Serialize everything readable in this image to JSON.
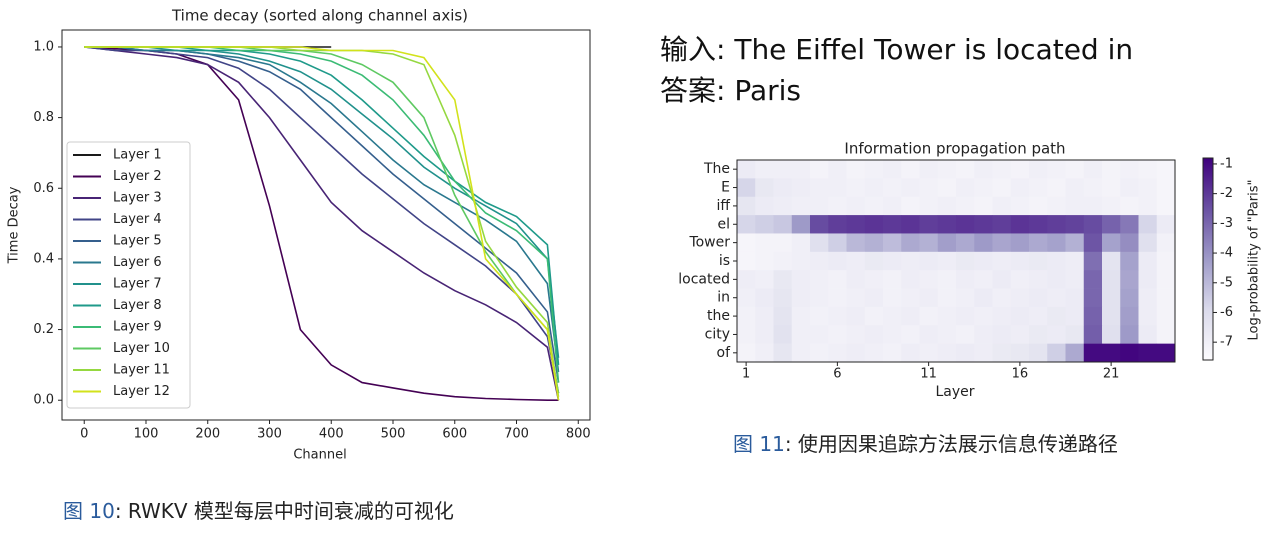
{
  "input_line": "输入: The Eiffel Tower is located in",
  "answer_line": "答案: Paris",
  "figure_10_caption": {
    "label": "图 10",
    "text": ": RWKV 模型每层中时间衰减的可视化"
  },
  "figure_11_caption": {
    "label": "图 11",
    "text": ": 使用因果追踪方法展示信息传递路径"
  },
  "chart_data": [
    {
      "type": "line",
      "title": "Time decay (sorted along channel axis)",
      "xlabel": "Channel",
      "ylabel": "Time Decay",
      "x": [
        0,
        50,
        100,
        150,
        200,
        250,
        300,
        350,
        400,
        450,
        500,
        550,
        600,
        650,
        700,
        750,
        768
      ],
      "xlim": [
        -36,
        819
      ],
      "xticks": [
        0,
        100,
        200,
        300,
        400,
        500,
        600,
        700,
        800
      ],
      "ylim": [
        -0.056,
        1.048
      ],
      "yticks": [
        {
          "value": 0,
          "label": "0.0"
        },
        0.2,
        0.4,
        0.6,
        0.8,
        {
          "value": 1,
          "label": "1.0"
        }
      ],
      "legend": "lower left",
      "series": [
        {
          "name": "Layer 1",
          "color": "#1a1a1a",
          "values": [
            1,
            1,
            1,
            1,
            1,
            1,
            1,
            1,
            1,
            null,
            null,
            null,
            null,
            null,
            null,
            null,
            null
          ]
        },
        {
          "name": "Layer 2",
          "color": "#440154",
          "values": [
            1,
            0.995,
            0.99,
            0.98,
            0.95,
            0.85,
            0.55,
            0.2,
            0.1,
            0.05,
            0.035,
            0.02,
            0.01,
            0.005,
            0.002,
            0,
            0
          ]
        },
        {
          "name": "Layer 3",
          "color": "#482475",
          "values": [
            1,
            0.99,
            0.98,
            0.97,
            0.95,
            0.9,
            0.8,
            0.68,
            0.56,
            0.48,
            0.42,
            0.36,
            0.31,
            0.27,
            0.22,
            0.15,
            0
          ]
        },
        {
          "name": "Layer 4",
          "color": "#414487",
          "values": [
            1,
            0.99,
            0.99,
            0.98,
            0.97,
            0.94,
            0.88,
            0.8,
            0.72,
            0.64,
            0.57,
            0.5,
            0.44,
            0.38,
            0.3,
            0.18,
            0.02
          ]
        },
        {
          "name": "Layer 5",
          "color": "#355f8d",
          "values": [
            1,
            1,
            0.99,
            0.99,
            0.98,
            0.96,
            0.93,
            0.88,
            0.8,
            0.72,
            0.64,
            0.57,
            0.5,
            0.43,
            0.36,
            0.25,
            0.05
          ]
        },
        {
          "name": "Layer 6",
          "color": "#2a788e",
          "values": [
            1,
            1,
            0.99,
            0.99,
            0.98,
            0.97,
            0.95,
            0.9,
            0.84,
            0.76,
            0.68,
            0.61,
            0.56,
            0.51,
            0.45,
            0.33,
            0.08
          ]
        },
        {
          "name": "Layer 7",
          "color": "#21918c",
          "values": [
            1,
            1,
            1,
            0.99,
            0.99,
            0.98,
            0.96,
            0.93,
            0.88,
            0.81,
            0.74,
            0.66,
            0.6,
            0.55,
            0.5,
            0.4,
            0.12
          ]
        },
        {
          "name": "Layer 8",
          "color": "#1f9a8a",
          "values": [
            1,
            1,
            1,
            1,
            0.99,
            0.99,
            0.98,
            0.96,
            0.92,
            0.85,
            0.77,
            0.69,
            0.62,
            0.56,
            0.52,
            0.44,
            0.1
          ]
        },
        {
          "name": "Layer 9",
          "color": "#3bbb75",
          "values": [
            1,
            1,
            1,
            1,
            1,
            0.99,
            0.99,
            0.98,
            0.96,
            0.92,
            0.85,
            0.75,
            0.62,
            0.53,
            0.48,
            0.4,
            0.05
          ]
        },
        {
          "name": "Layer 10",
          "color": "#5ec962",
          "values": [
            1,
            1,
            1,
            1,
            1,
            1,
            0.99,
            0.99,
            0.98,
            0.95,
            0.9,
            0.8,
            0.58,
            0.42,
            0.3,
            0.2,
            0.02
          ]
        },
        {
          "name": "Layer 11",
          "color": "#95d840",
          "values": [
            1,
            1,
            1,
            1,
            1,
            1,
            1,
            0.99,
            0.99,
            0.99,
            0.98,
            0.95,
            0.75,
            0.45,
            0.32,
            0.22,
            0.01
          ]
        },
        {
          "name": "Layer 12",
          "color": "#d2e21b",
          "values": [
            1,
            1,
            1,
            1,
            1,
            1,
            1,
            1,
            0.99,
            0.99,
            0.99,
            0.97,
            0.85,
            0.4,
            0.3,
            0.2,
            0
          ]
        }
      ]
    },
    {
      "type": "heatmap",
      "title": "Information propagation path",
      "xlabel": "Layer",
      "colorbar_label": "Log-probability of \"Paris\"",
      "y_categories": [
        "The",
        "E",
        "iff",
        "el",
        "Tower",
        "is",
        "located",
        "in",
        "the",
        "city",
        "of"
      ],
      "x": [
        1,
        2,
        3,
        4,
        5,
        6,
        7,
        8,
        9,
        10,
        11,
        12,
        13,
        14,
        15,
        16,
        17,
        18,
        19,
        20,
        21,
        22,
        23,
        24
      ],
      "xlim": [
        0.5,
        24.5
      ],
      "xticks": [
        1,
        6,
        11,
        16,
        21
      ],
      "clim": [
        -7.6,
        -0.8
      ],
      "cticks": [
        -1,
        -2,
        -3,
        -4,
        -5,
        -6,
        -7
      ],
      "colormap": [
        "#fcfbfd",
        "#dadaeb",
        "#9e9ac8",
        "#6a51a3",
        "#3f007d"
      ],
      "values": [
        [
          -6.8,
          -7,
          -7,
          -7,
          -7.2,
          -7,
          -7.2,
          -7.1,
          -7,
          -7.2,
          -7,
          -7.1,
          -7.2,
          -7,
          -7.1,
          -7.2,
          -7,
          -7.1,
          -7.2,
          -7,
          -7.2,
          -7.1,
          -7.2,
          -7.3
        ],
        [
          -5.8,
          -6.6,
          -6.8,
          -6.9,
          -7,
          -7,
          -7.1,
          -7,
          -7.1,
          -7,
          -7.1,
          -7.2,
          -7,
          -7.1,
          -7.2,
          -7,
          -7.1,
          -7.2,
          -7,
          -7.1,
          -7.2,
          -7,
          -7.1,
          -7.3
        ],
        [
          -6.5,
          -6.8,
          -6.9,
          -7,
          -7,
          -7.1,
          -7,
          -7.1,
          -7,
          -7.2,
          -7.1,
          -7,
          -7.1,
          -7.2,
          -7,
          -7.1,
          -7.2,
          -7.1,
          -7,
          -7,
          -7.1,
          -7.2,
          -7.1,
          -7.3
        ],
        [
          -5.8,
          -5.6,
          -5.4,
          -4.2,
          -2.4,
          -2.1,
          -2.0,
          -1.9,
          -2.0,
          -1.9,
          -2.1,
          -2.0,
          -1.9,
          -2.0,
          -2.1,
          -1.9,
          -2.0,
          -2.1,
          -2.2,
          -2.4,
          -2.9,
          -3.4,
          -5.8,
          -6.8
        ],
        [
          -7.3,
          -7.2,
          -7.2,
          -7.0,
          -6.2,
          -5.6,
          -5.0,
          -4.8,
          -5.1,
          -4.6,
          -4.8,
          -4.3,
          -4.6,
          -4.2,
          -4.5,
          -4.3,
          -4.6,
          -4.4,
          -4.8,
          -2.6,
          -4.4,
          -3.9,
          -6.2,
          -7.1
        ],
        [
          -7.3,
          -7.2,
          -7.1,
          -7.0,
          -6.9,
          -6.8,
          -6.9,
          -6.7,
          -6.8,
          -6.9,
          -6.8,
          -6.9,
          -6.7,
          -6.8,
          -6.9,
          -6.8,
          -6.7,
          -6.8,
          -6.9,
          -3.2,
          -6.4,
          -4.4,
          -6.8,
          -7.2
        ],
        [
          -6.9,
          -7.0,
          -6.6,
          -6.9,
          -7.0,
          -7.1,
          -6.9,
          -7.0,
          -7.1,
          -6.9,
          -7.0,
          -7.1,
          -6.9,
          -7.0,
          -6.8,
          -7.0,
          -6.9,
          -6.8,
          -6.9,
          -3.0,
          -6.3,
          -4.5,
          -6.8,
          -7.2
        ],
        [
          -7.0,
          -6.8,
          -6.5,
          -6.9,
          -7.0,
          -7.1,
          -7.0,
          -6.9,
          -7.1,
          -7.0,
          -6.9,
          -7.1,
          -7.0,
          -6.8,
          -7.0,
          -6.9,
          -6.8,
          -6.9,
          -6.8,
          -3.0,
          -6.3,
          -4.4,
          -6.9,
          -7.2
        ],
        [
          -7.1,
          -6.9,
          -6.4,
          -7.0,
          -7.1,
          -7.0,
          -6.9,
          -7.1,
          -7.0,
          -6.9,
          -7.1,
          -7.0,
          -6.9,
          -7.0,
          -6.9,
          -6.8,
          -6.9,
          -6.7,
          -6.8,
          -2.9,
          -6.3,
          -4.3,
          -6.9,
          -7.2
        ],
        [
          -7.1,
          -6.9,
          -6.3,
          -7.0,
          -7.0,
          -7.1,
          -7.0,
          -6.9,
          -7.0,
          -7.1,
          -6.9,
          -7.0,
          -7.1,
          -6.9,
          -6.8,
          -6.9,
          -6.7,
          -6.8,
          -6.6,
          -2.8,
          -6.2,
          -4.2,
          -6.8,
          -7.2
        ],
        [
          -7.2,
          -7.0,
          -6.5,
          -7.0,
          -7.1,
          -7.0,
          -6.9,
          -7.0,
          -7.1,
          -6.9,
          -7.0,
          -6.9,
          -6.8,
          -6.9,
          -6.7,
          -6.6,
          -6.4,
          -5.6,
          -4.6,
          -1.0,
          -1.0,
          -0.9,
          -1.0,
          -1.0
        ]
      ]
    }
  ]
}
